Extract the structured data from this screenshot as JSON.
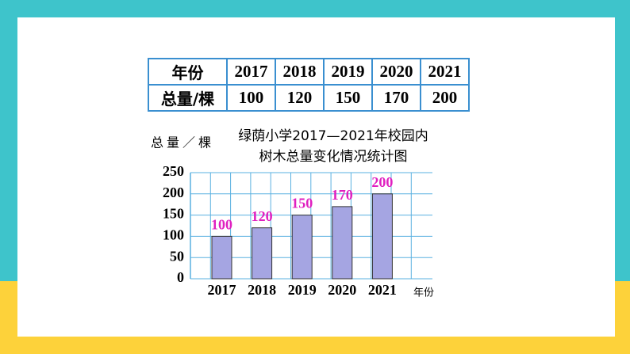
{
  "table": {
    "rows": [
      [
        "年份",
        "2017",
        "2018",
        "2019",
        "2020",
        "2021"
      ],
      [
        "总量/棵",
        "100",
        "120",
        "150",
        "170",
        "200"
      ]
    ]
  },
  "chart_data": {
    "type": "bar",
    "title": [
      "绿荫小学2017—2021年校园内",
      "树木总量变化情况统计图"
    ],
    "y_label": "总量／棵",
    "x_label": "年份",
    "categories": [
      "2017",
      "2018",
      "2019",
      "2020",
      "2021"
    ],
    "values": [
      100,
      120,
      150,
      170,
      200
    ],
    "color": "#a5a5e2",
    "label_color": "#e020c0",
    "grid_color": "#5ab0e0",
    "ylim": [
      0,
      250
    ],
    "yticks": [
      0,
      50,
      100,
      150,
      200,
      250
    ],
    "grid": true
  }
}
